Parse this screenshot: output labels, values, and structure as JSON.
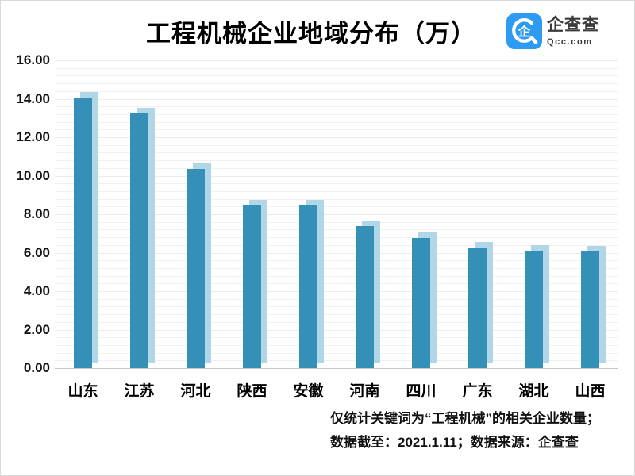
{
  "title": "工程机械企业地域分布（万）",
  "logo": {
    "brand_cn": "企查查",
    "brand_domain": "Qcc.com",
    "brand_color": "#2D9BF2",
    "glyph": "企"
  },
  "footnote": {
    "line1": "仅统计关键词为“工程机械”的相关企业数量；",
    "line2": "数据截至：2021.1.11；数据来源：企查查"
  },
  "chart_data": {
    "type": "bar",
    "title": "工程机械企业地域分布（万）",
    "categories": [
      "山东",
      "江苏",
      "河北",
      "陕西",
      "安徽",
      "河南",
      "四川",
      "广东",
      "湖北",
      "山西"
    ],
    "values": [
      14.05,
      13.25,
      10.37,
      8.46,
      8.44,
      7.4,
      6.78,
      6.26,
      6.1,
      6.08
    ],
    "xlabel": "",
    "ylabel": "",
    "unit": "万",
    "ylim": [
      0,
      16
    ],
    "ytick_step": 2,
    "ytick_decimals": 2,
    "minor_gridlines_per_major": 5,
    "grid": "horizontal",
    "legend": "none",
    "bar_color": "#3490B6",
    "bar_shadow_color": "#B0D6E8",
    "gridline_color": "#f1f1f1",
    "baseline_color": "#c6c6c6"
  }
}
